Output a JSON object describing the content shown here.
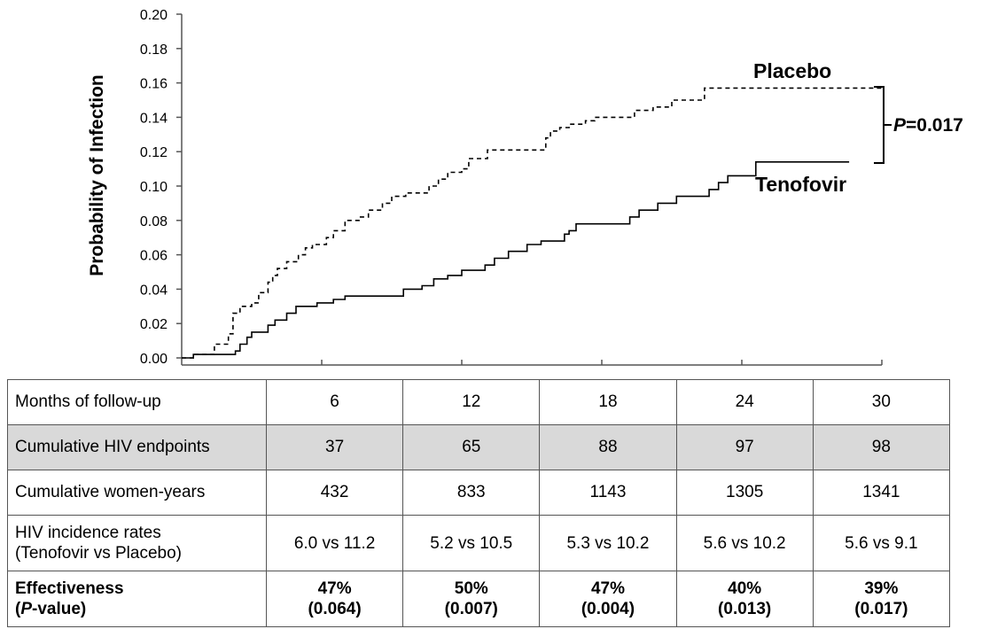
{
  "chart_data": {
    "type": "line",
    "ylabel": "Probability of Infection",
    "ylim": [
      0,
      0.2
    ],
    "yticks": [
      "0.20",
      "0.18",
      "0.16",
      "0.14",
      "0.12",
      "0.10",
      "0.08",
      "0.06",
      "0.04",
      "0.02",
      "0.00"
    ],
    "xlim": [
      0,
      30
    ],
    "xticks": [
      6,
      12,
      18,
      24,
      30
    ],
    "series": [
      {
        "name": "Placebo",
        "style": "dashed",
        "color": "#000000",
        "points": [
          [
            0,
            0
          ],
          [
            0.5,
            0
          ],
          [
            0.5,
            0.002
          ],
          [
            1.4,
            0.002
          ],
          [
            1.4,
            0.008
          ],
          [
            2.0,
            0.008
          ],
          [
            2.0,
            0.014
          ],
          [
            2.2,
            0.014
          ],
          [
            2.2,
            0.026
          ],
          [
            2.5,
            0.026
          ],
          [
            2.5,
            0.03
          ],
          [
            3.0,
            0.03
          ],
          [
            3.0,
            0.032
          ],
          [
            3.3,
            0.032
          ],
          [
            3.3,
            0.038
          ],
          [
            3.7,
            0.038
          ],
          [
            3.7,
            0.044
          ],
          [
            3.9,
            0.044
          ],
          [
            3.9,
            0.048
          ],
          [
            4.1,
            0.048
          ],
          [
            4.1,
            0.052
          ],
          [
            4.5,
            0.052
          ],
          [
            4.5,
            0.056
          ],
          [
            5.0,
            0.056
          ],
          [
            5.0,
            0.06
          ],
          [
            5.3,
            0.06
          ],
          [
            5.3,
            0.064
          ],
          [
            5.6,
            0.064
          ],
          [
            5.6,
            0.066
          ],
          [
            6.2,
            0.066
          ],
          [
            6.2,
            0.07
          ],
          [
            6.5,
            0.07
          ],
          [
            6.5,
            0.074
          ],
          [
            7.0,
            0.074
          ],
          [
            7.0,
            0.08
          ],
          [
            7.6,
            0.08
          ],
          [
            7.6,
            0.082
          ],
          [
            8.0,
            0.082
          ],
          [
            8.0,
            0.086
          ],
          [
            8.6,
            0.086
          ],
          [
            8.6,
            0.09
          ],
          [
            9.0,
            0.09
          ],
          [
            9.0,
            0.094
          ],
          [
            9.6,
            0.094
          ],
          [
            9.6,
            0.096
          ],
          [
            10.6,
            0.096
          ],
          [
            10.6,
            0.1
          ],
          [
            11.0,
            0.1
          ],
          [
            11.0,
            0.104
          ],
          [
            11.4,
            0.104
          ],
          [
            11.4,
            0.108
          ],
          [
            12.0,
            0.108
          ],
          [
            12.0,
            0.11
          ],
          [
            12.3,
            0.11
          ],
          [
            12.3,
            0.116
          ],
          [
            13.1,
            0.116
          ],
          [
            13.1,
            0.121
          ],
          [
            15.6,
            0.121
          ],
          [
            15.6,
            0.128
          ],
          [
            15.8,
            0.128
          ],
          [
            15.8,
            0.132
          ],
          [
            16.2,
            0.132
          ],
          [
            16.2,
            0.134
          ],
          [
            16.6,
            0.134
          ],
          [
            16.6,
            0.136
          ],
          [
            17.3,
            0.136
          ],
          [
            17.3,
            0.138
          ],
          [
            17.7,
            0.138
          ],
          [
            17.7,
            0.14
          ],
          [
            19.4,
            0.14
          ],
          [
            19.4,
            0.144
          ],
          [
            20.2,
            0.144
          ],
          [
            20.2,
            0.146
          ],
          [
            21.0,
            0.146
          ],
          [
            21.0,
            0.15
          ],
          [
            22.4,
            0.15
          ],
          [
            22.4,
            0.157
          ],
          [
            30.0,
            0.157
          ]
        ]
      },
      {
        "name": "Tenofovir",
        "style": "solid",
        "color": "#000000",
        "points": [
          [
            0,
            0
          ],
          [
            0.5,
            0
          ],
          [
            0.5,
            0.002
          ],
          [
            2.3,
            0.002
          ],
          [
            2.3,
            0.004
          ],
          [
            2.5,
            0.004
          ],
          [
            2.5,
            0.008
          ],
          [
            2.8,
            0.008
          ],
          [
            2.8,
            0.012
          ],
          [
            3.0,
            0.012
          ],
          [
            3.0,
            0.015
          ],
          [
            3.7,
            0.015
          ],
          [
            3.7,
            0.019
          ],
          [
            4.0,
            0.019
          ],
          [
            4.0,
            0.022
          ],
          [
            4.5,
            0.022
          ],
          [
            4.5,
            0.026
          ],
          [
            4.9,
            0.026
          ],
          [
            4.9,
            0.03
          ],
          [
            5.8,
            0.03
          ],
          [
            5.8,
            0.032
          ],
          [
            6.5,
            0.032
          ],
          [
            6.5,
            0.034
          ],
          [
            7.0,
            0.034
          ],
          [
            7.0,
            0.036
          ],
          [
            9.5,
            0.036
          ],
          [
            9.5,
            0.04
          ],
          [
            10.3,
            0.04
          ],
          [
            10.3,
            0.042
          ],
          [
            10.8,
            0.042
          ],
          [
            10.8,
            0.046
          ],
          [
            11.4,
            0.046
          ],
          [
            11.4,
            0.048
          ],
          [
            12.0,
            0.048
          ],
          [
            12.0,
            0.051
          ],
          [
            13.0,
            0.051
          ],
          [
            13.0,
            0.054
          ],
          [
            13.4,
            0.054
          ],
          [
            13.4,
            0.058
          ],
          [
            14.0,
            0.058
          ],
          [
            14.0,
            0.062
          ],
          [
            14.8,
            0.062
          ],
          [
            14.8,
            0.066
          ],
          [
            15.4,
            0.066
          ],
          [
            15.4,
            0.068
          ],
          [
            16.4,
            0.068
          ],
          [
            16.4,
            0.072
          ],
          [
            16.6,
            0.072
          ],
          [
            16.6,
            0.074
          ],
          [
            16.9,
            0.074
          ],
          [
            16.9,
            0.078
          ],
          [
            19.2,
            0.078
          ],
          [
            19.2,
            0.082
          ],
          [
            19.6,
            0.082
          ],
          [
            19.6,
            0.086
          ],
          [
            20.4,
            0.086
          ],
          [
            20.4,
            0.09
          ],
          [
            21.2,
            0.09
          ],
          [
            21.2,
            0.094
          ],
          [
            22.6,
            0.094
          ],
          [
            22.6,
            0.098
          ],
          [
            23.0,
            0.098
          ],
          [
            23.0,
            0.102
          ],
          [
            23.4,
            0.102
          ],
          [
            23.4,
            0.106
          ],
          [
            24.6,
            0.106
          ],
          [
            24.6,
            0.114
          ],
          [
            28.6,
            0.114
          ]
        ]
      }
    ],
    "annotations": {
      "placebo_label": "Placebo",
      "tenofovir_label": "Tenofovir",
      "p_prefix": "P",
      "p_value": "=0.017"
    }
  },
  "table": {
    "rows": [
      {
        "label": "Months of follow-up",
        "values": [
          "6",
          "12",
          "18",
          "24",
          "30"
        ]
      },
      {
        "label": "Cumulative HIV endpoints",
        "values": [
          "37",
          "65",
          "88",
          "97",
          "98"
        ]
      },
      {
        "label": "Cumulative women-years",
        "values": [
          "432",
          "833",
          "1143",
          "1305",
          "1341"
        ]
      },
      {
        "label": "HIV incidence rates",
        "label2": "(Tenofovir vs Placebo)",
        "values": [
          "6.0 vs 11.2",
          "5.2 vs 10.5",
          "5.3 vs 10.2",
          "5.6 vs 10.2",
          "5.6 vs 9.1"
        ]
      },
      {
        "label": "Effectiveness",
        "label2_prefix": "P",
        "label2_suffix": "-value)",
        "values": [
          "47%",
          "50%",
          "47%",
          "40%",
          "39%"
        ],
        "values2": [
          "(0.064)",
          "(0.007)",
          "(0.004)",
          "(0.013)",
          "(0.017)"
        ]
      }
    ]
  }
}
